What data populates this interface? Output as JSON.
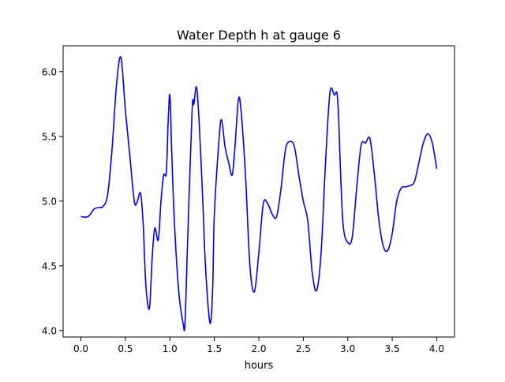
{
  "chart_data": {
    "type": "line",
    "title": "Water Depth h at gauge 6",
    "xlabel": "hours",
    "ylabel": "",
    "xlim": [
      -0.2,
      4.2
    ],
    "ylim": [
      3.95,
      6.2
    ],
    "xticks": [
      0.0,
      0.5,
      1.0,
      1.5,
      2.0,
      2.5,
      3.0,
      3.5,
      4.0
    ],
    "xtick_labels": [
      "0.0",
      "0.5",
      "1.0",
      "1.5",
      "2.0",
      "2.5",
      "3.0",
      "3.5",
      "4.0"
    ],
    "yticks": [
      4.0,
      4.5,
      5.0,
      5.5,
      6.0
    ],
    "ytick_labels": [
      "4.0",
      "4.5",
      "5.0",
      "5.5",
      "6.0"
    ],
    "grid": false,
    "series": [
      {
        "color": "#0000ff",
        "x": [
          0.0,
          0.08,
          0.15,
          0.2,
          0.25,
          0.3,
          0.35,
          0.4,
          0.45,
          0.5,
          0.55,
          0.6,
          0.63,
          0.67,
          0.7,
          0.73,
          0.77,
          0.8,
          0.83,
          0.87,
          0.9,
          0.93,
          0.96,
          0.98,
          1.0,
          1.02,
          1.05,
          1.1,
          1.15,
          1.17,
          1.2,
          1.25,
          1.27,
          1.3,
          1.33,
          1.37,
          1.4,
          1.45,
          1.48,
          1.5,
          1.55,
          1.58,
          1.62,
          1.66,
          1.7,
          1.73,
          1.77,
          1.8,
          1.85,
          1.9,
          1.95,
          2.0,
          2.05,
          2.1,
          2.15,
          2.2,
          2.25,
          2.3,
          2.35,
          2.4,
          2.45,
          2.5,
          2.55,
          2.6,
          2.65,
          2.7,
          2.75,
          2.8,
          2.85,
          2.88,
          2.9,
          2.92,
          2.95,
          3.0,
          3.05,
          3.1,
          3.15,
          3.2,
          3.25,
          3.3,
          3.35,
          3.4,
          3.45,
          3.5,
          3.55,
          3.6,
          3.65,
          3.7,
          3.75,
          3.8,
          3.85,
          3.9,
          3.95,
          4.0
        ],
        "y": [
          4.88,
          4.88,
          4.94,
          4.95,
          4.96,
          5.05,
          5.4,
          5.9,
          6.11,
          5.7,
          5.35,
          5.0,
          4.99,
          5.06,
          4.82,
          4.35,
          4.17,
          4.55,
          4.79,
          4.7,
          5.0,
          5.2,
          5.22,
          5.6,
          5.82,
          5.4,
          4.85,
          4.3,
          4.05,
          4.06,
          4.7,
          5.7,
          5.75,
          5.88,
          5.6,
          5.0,
          4.5,
          4.06,
          4.3,
          4.9,
          5.45,
          5.63,
          5.42,
          5.3,
          5.2,
          5.4,
          5.78,
          5.7,
          5.2,
          4.5,
          4.3,
          4.6,
          4.98,
          4.98,
          4.9,
          4.88,
          5.1,
          5.4,
          5.46,
          5.42,
          5.2,
          5.0,
          4.85,
          4.45,
          4.31,
          4.6,
          5.3,
          5.84,
          5.82,
          5.83,
          5.6,
          5.2,
          4.8,
          4.68,
          4.72,
          5.1,
          5.43,
          5.45,
          5.48,
          5.2,
          4.85,
          4.65,
          4.62,
          4.75,
          5.0,
          5.1,
          5.11,
          5.12,
          5.15,
          5.3,
          5.45,
          5.52,
          5.45,
          5.25
        ]
      }
    ]
  }
}
